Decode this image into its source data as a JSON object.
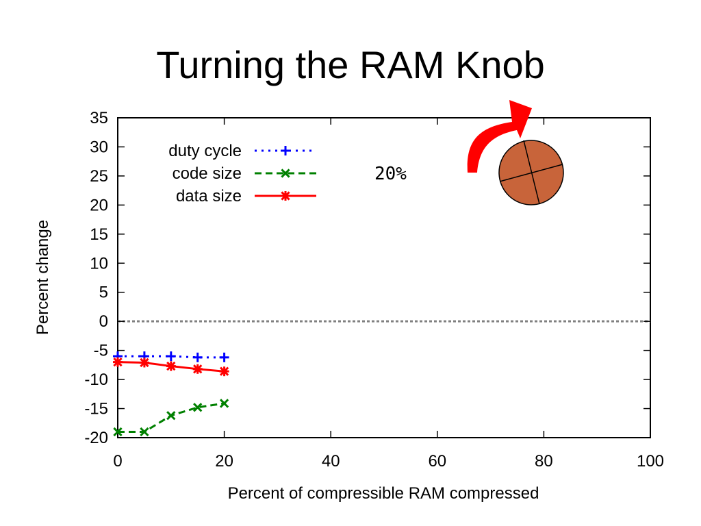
{
  "slide": {
    "title": "Turning the RAM Knob"
  },
  "colors": {
    "knob_fill": "#c8643a",
    "arrow": "#ff0000"
  },
  "icons": {
    "knob": "ram-knob-icon",
    "arrow": "turn-arrow-icon"
  },
  "chart_data": {
    "type": "line",
    "xlabel": "Percent of compressible RAM compressed",
    "ylabel": "Percent change",
    "xlim": [
      0,
      100
    ],
    "ylim": [
      -20,
      35
    ],
    "xticks": [
      0,
      20,
      40,
      60,
      80,
      100
    ],
    "yticks": [
      35,
      30,
      25,
      20,
      15,
      10,
      5,
      0,
      -5,
      -10,
      -15,
      -20
    ],
    "x": [
      0,
      5,
      10,
      15,
      20
    ],
    "series": [
      {
        "name": "duty cycle",
        "values": [
          -6.0,
          -6.0,
          -6.0,
          -6.2,
          -6.2
        ],
        "color": "#0000ff",
        "marker": "+",
        "dash": "dotted"
      },
      {
        "name": "code size",
        "values": [
          -19.0,
          -19.0,
          -16.2,
          -14.8,
          -14.1
        ],
        "color": "#008000",
        "marker": "x",
        "dash": "dashed"
      },
      {
        "name": "data size",
        "values": [
          -7.0,
          -7.1,
          -7.7,
          -8.2,
          -8.6
        ],
        "color": "#ff0000",
        "marker": "*",
        "dash": "solid"
      }
    ],
    "reference_line": {
      "y": 0,
      "style": "dotted",
      "color": "#808080"
    },
    "legend_position": "top-left",
    "annotation": "20%",
    "grid": false
  }
}
